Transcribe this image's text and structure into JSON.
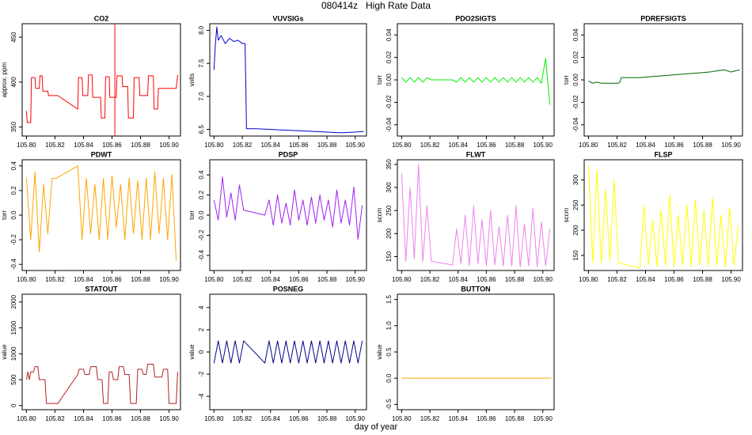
{
  "title": "080414z   High Rate Data",
  "x_label": "day of year",
  "chart_data": [
    {
      "type": "line",
      "title": "CO2",
      "y_label": "approx. ppm",
      "color": "#ff0000",
      "x": [
        105.8,
        105.8005,
        105.803,
        105.8035,
        105.806,
        105.8065,
        105.809,
        105.8095,
        105.811,
        105.8115,
        105.815,
        105.8155,
        105.822,
        105.836,
        105.8365,
        105.839,
        105.8395,
        105.843,
        105.8435,
        105.846,
        105.8465,
        105.852,
        105.8525,
        105.855,
        105.8555,
        105.858,
        105.8585,
        105.863,
        105.8635,
        105.867,
        105.8675,
        105.871,
        105.8715,
        105.875,
        105.8755,
        105.879,
        105.8795,
        105.885,
        105.8855,
        105.889,
        105.8895,
        105.892,
        105.8925,
        105.905,
        105.906
      ],
      "values": [
        368,
        355,
        355,
        405,
        405,
        393,
        393,
        407,
        407,
        390,
        390,
        385,
        385,
        370,
        405,
        405,
        385,
        385,
        408,
        408,
        383,
        383,
        360,
        360,
        406,
        406,
        383,
        383,
        407,
        407,
        395,
        395,
        360,
        360,
        405,
        405,
        385,
        385,
        407,
        407,
        370,
        370,
        393,
        393,
        408
      ],
      "vline": 105.862,
      "xlim": [
        105.797,
        105.908
      ],
      "xticks": [
        {
          "value": 105.8,
          "label": "105.80"
        },
        {
          "value": 105.82,
          "label": "105.82"
        },
        {
          "value": 105.84,
          "label": "105.84"
        },
        {
          "value": 105.86,
          "label": "105.86"
        },
        {
          "value": 105.88,
          "label": "105.88"
        },
        {
          "value": 105.9,
          "label": "105.90"
        }
      ],
      "ylim": [
        340,
        465
      ],
      "yticks": [
        350,
        400,
        450
      ]
    },
    {
      "type": "line",
      "title": "VUVSIGs",
      "y_label": "volts",
      "color": "#0000cd",
      "x": [
        105.8,
        105.801,
        105.802,
        105.803,
        105.805,
        105.808,
        105.811,
        105.814,
        105.817,
        105.82,
        105.822,
        105.8225,
        105.823,
        105.83,
        105.85,
        105.87,
        105.89,
        105.9,
        105.906
      ],
      "values": [
        7.4,
        7.8,
        8.05,
        7.85,
        7.92,
        7.8,
        7.88,
        7.83,
        7.85,
        7.8,
        7.8,
        7.2,
        6.51,
        6.51,
        6.49,
        6.47,
        6.45,
        6.46,
        6.47
      ],
      "xlim": [
        105.797,
        105.908
      ],
      "xticks": [
        {
          "value": 105.8,
          "label": "105.80"
        },
        {
          "value": 105.82,
          "label": "105.82"
        },
        {
          "value": 105.84,
          "label": "105.84"
        },
        {
          "value": 105.86,
          "label": "105.86"
        },
        {
          "value": 105.88,
          "label": "105.88"
        },
        {
          "value": 105.9,
          "label": "105.90"
        }
      ],
      "ylim": [
        6.4,
        8.1
      ],
      "yticks": [
        6.5,
        {
          "value": 7.0,
          "label": "7.0"
        },
        7.5,
        {
          "value": 8.0,
          "label": "8.0"
        }
      ]
    },
    {
      "type": "line",
      "title": "PDO2SIGTS",
      "y_label": "torr",
      "color": "#00ee00",
      "x": [
        105.8,
        105.803,
        105.806,
        105.809,
        105.812,
        105.815,
        105.818,
        105.821,
        105.836,
        105.839,
        105.842,
        105.845,
        105.848,
        105.851,
        105.854,
        105.857,
        105.86,
        105.863,
        105.866,
        105.869,
        105.872,
        105.875,
        105.878,
        105.881,
        105.884,
        105.887,
        105.89,
        105.893,
        105.896,
        105.899,
        105.902,
        105.905
      ],
      "values": [
        0.002,
        -0.002,
        0.002,
        -0.002,
        0.002,
        -0.002,
        0.002,
        0,
        0,
        -0.002,
        0.002,
        -0.002,
        0.002,
        -0.002,
        0.002,
        -0.002,
        0.002,
        -0.002,
        0.002,
        -0.002,
        0.002,
        -0.002,
        0.002,
        -0.002,
        0.002,
        -0.002,
        0.002,
        -0.002,
        0.002,
        -0.003,
        0.019,
        -0.022
      ],
      "xlim": [
        105.797,
        105.908
      ],
      "xticks": [
        {
          "value": 105.8,
          "label": "105.80"
        },
        {
          "value": 105.82,
          "label": "105.82"
        },
        {
          "value": 105.84,
          "label": "105.84"
        },
        {
          "value": 105.86,
          "label": "105.86"
        },
        {
          "value": 105.88,
          "label": "105.88"
        },
        {
          "value": 105.9,
          "label": "105.90"
        }
      ],
      "ylim": [
        -0.05,
        0.05
      ],
      "yticks": [
        -0.04,
        -0.02,
        {
          "value": 0,
          "label": "0.00"
        },
        0.02,
        0.04
      ]
    },
    {
      "type": "line",
      "title": "PDREFSIGTS",
      "y_label": "torr",
      "color": "#006400",
      "x": [
        105.8,
        105.803,
        105.806,
        105.809,
        105.812,
        105.815,
        105.818,
        105.821,
        105.822,
        105.823,
        105.836,
        105.845,
        105.855,
        105.865,
        105.875,
        105.885,
        105.89,
        105.895,
        105.9,
        105.906
      ],
      "values": [
        -0.001,
        -0.003,
        -0.002,
        -0.003,
        -0.003,
        -0.003,
        -0.003,
        -0.003,
        -0.002,
        0.002,
        0.002,
        0.003,
        0.004,
        0.005,
        0.006,
        0.007,
        0.008,
        0.009,
        0.007,
        0.009
      ],
      "xlim": [
        105.797,
        105.908
      ],
      "xticks": [
        {
          "value": 105.8,
          "label": "105.80"
        },
        {
          "value": 105.82,
          "label": "105.82"
        },
        {
          "value": 105.84,
          "label": "105.84"
        },
        {
          "value": 105.86,
          "label": "105.86"
        },
        {
          "value": 105.88,
          "label": "105.88"
        },
        {
          "value": 105.9,
          "label": "105.90"
        }
      ],
      "ylim": [
        -0.05,
        0.05
      ],
      "yticks": [
        -0.04,
        -0.02,
        {
          "value": 0,
          "label": "0.00"
        },
        0.02,
        0.04
      ]
    },
    {
      "type": "line",
      "title": "PDWT",
      "y_label": "torr",
      "color": "#ffa500",
      "x": [
        105.8,
        105.803,
        105.806,
        105.809,
        105.812,
        105.815,
        105.818,
        105.821,
        105.836,
        105.839,
        105.842,
        105.845,
        105.848,
        105.851,
        105.854,
        105.857,
        105.86,
        105.863,
        105.866,
        105.869,
        105.872,
        105.875,
        105.878,
        105.881,
        105.884,
        105.887,
        105.89,
        105.893,
        105.896,
        105.899,
        105.902,
        105.905
      ],
      "values": [
        0.3,
        -0.2,
        0.35,
        -0.3,
        0.25,
        -0.15,
        0.3,
        0.3,
        0.4,
        -0.2,
        0.3,
        -0.15,
        0.25,
        -0.2,
        0.3,
        -0.2,
        0.32,
        -0.1,
        0.25,
        -0.2,
        0.3,
        -0.15,
        0.28,
        -0.2,
        0.3,
        -0.2,
        0.35,
        -0.15,
        0.3,
        -0.2,
        0.33,
        -0.37
      ],
      "xlim": [
        105.797,
        105.908
      ],
      "xticks": [
        {
          "value": 105.8,
          "label": "105.80"
        },
        {
          "value": 105.82,
          "label": "105.82"
        },
        {
          "value": 105.84,
          "label": "105.84"
        },
        {
          "value": 105.86,
          "label": "105.86"
        },
        {
          "value": 105.88,
          "label": "105.88"
        },
        {
          "value": 105.9,
          "label": "105.90"
        }
      ],
      "ylim": [
        -0.45,
        0.45
      ],
      "yticks": [
        -0.4,
        -0.2,
        {
          "value": 0,
          "label": "0.0"
        },
        0.2,
        0.4
      ]
    },
    {
      "type": "line",
      "title": "PDSP",
      "y_label": "torr",
      "color": "#a020f0",
      "x": [
        105.8,
        105.803,
        105.806,
        105.809,
        105.812,
        105.815,
        105.818,
        105.821,
        105.836,
        105.839,
        105.842,
        105.845,
        105.848,
        105.851,
        105.854,
        105.857,
        105.86,
        105.863,
        105.866,
        105.869,
        105.872,
        105.875,
        105.878,
        105.881,
        105.884,
        105.887,
        105.89,
        105.893,
        105.896,
        105.899,
        105.902,
        105.905
      ],
      "values": [
        0.15,
        -0.05,
        0.38,
        -0.02,
        0.22,
        -0.05,
        0.3,
        0.05,
        0,
        0.15,
        -0.1,
        0.2,
        -0.08,
        0.12,
        -0.1,
        0.25,
        -0.05,
        0.15,
        -0.1,
        0.18,
        -0.08,
        0.2,
        -0.05,
        0.15,
        -0.12,
        0.25,
        -0.08,
        0.15,
        -0.1,
        0.28,
        -0.24,
        0.1
      ],
      "xlim": [
        105.797,
        105.908
      ],
      "xticks": [
        {
          "value": 105.8,
          "label": "105.80"
        },
        {
          "value": 105.82,
          "label": "105.82"
        },
        {
          "value": 105.84,
          "label": "105.84"
        },
        {
          "value": 105.86,
          "label": "105.86"
        },
        {
          "value": 105.88,
          "label": "105.88"
        },
        {
          "value": 105.9,
          "label": "105.90"
        }
      ],
      "ylim": [
        -0.55,
        0.55
      ],
      "yticks": [
        -0.4,
        -0.2,
        {
          "value": 0,
          "label": "0.0"
        },
        0.2,
        0.4
      ]
    },
    {
      "type": "line",
      "title": "FLWT",
      "y_label": "sccm",
      "color": "#ee82ee",
      "x": [
        105.8,
        105.803,
        105.806,
        105.809,
        105.812,
        105.815,
        105.818,
        105.821,
        105.836,
        105.839,
        105.842,
        105.845,
        105.848,
        105.851,
        105.854,
        105.857,
        105.86,
        105.863,
        105.866,
        105.869,
        105.872,
        105.875,
        105.878,
        105.881,
        105.884,
        105.887,
        105.89,
        105.893,
        105.896,
        105.899,
        105.902,
        105.905
      ],
      "values": [
        330,
        140,
        300,
        145,
        350,
        140,
        260,
        140,
        132,
        210,
        135,
        240,
        130,
        260,
        135,
        230,
        130,
        250,
        132,
        215,
        130,
        240,
        130,
        260,
        128,
        220,
        130,
        255,
        128,
        225,
        130,
        210
      ],
      "xlim": [
        105.797,
        105.908
      ],
      "xticks": [
        {
          "value": 105.8,
          "label": "105.80"
        },
        {
          "value": 105.82,
          "label": "105.82"
        },
        {
          "value": 105.84,
          "label": "105.84"
        },
        {
          "value": 105.86,
          "label": "105.86"
        },
        {
          "value": 105.88,
          "label": "105.88"
        },
        {
          "value": 105.9,
          "label": "105.90"
        }
      ],
      "ylim": [
        120,
        360
      ],
      "yticks": [
        150,
        200,
        250,
        300,
        350
      ]
    },
    {
      "type": "line",
      "title": "FLSP",
      "y_label": "sccm",
      "color": "#ffff00",
      "x": [
        105.8,
        105.803,
        105.806,
        105.809,
        105.812,
        105.815,
        105.818,
        105.821,
        105.836,
        105.839,
        105.842,
        105.845,
        105.848,
        105.851,
        105.854,
        105.857,
        105.86,
        105.863,
        105.866,
        105.869,
        105.872,
        105.875,
        105.878,
        105.881,
        105.884,
        105.887,
        105.89,
        105.893,
        105.896,
        105.899,
        105.902,
        105.905
      ],
      "values": [
        330,
        135,
        320,
        135,
        280,
        140,
        300,
        135,
        125,
        250,
        130,
        220,
        128,
        240,
        130,
        270,
        128,
        230,
        130,
        250,
        128,
        260,
        130,
        240,
        128,
        265,
        130,
        230,
        128,
        245,
        130,
        210
      ],
      "xlim": [
        105.797,
        105.908
      ],
      "xticks": [
        {
          "value": 105.8,
          "label": "105.80"
        },
        {
          "value": 105.82,
          "label": "105.82"
        },
        {
          "value": 105.84,
          "label": "105.84"
        },
        {
          "value": 105.86,
          "label": "105.86"
        },
        {
          "value": 105.88,
          "label": "105.88"
        },
        {
          "value": 105.9,
          "label": "105.90"
        }
      ],
      "ylim": [
        120,
        340
      ],
      "yticks": [
        150,
        200,
        250,
        300
      ]
    },
    {
      "type": "line",
      "title": "STATOUT",
      "y_label": "value",
      "color": "#b22222",
      "x": [
        105.8,
        105.801,
        105.802,
        105.803,
        105.805,
        105.806,
        105.808,
        105.809,
        105.813,
        105.814,
        105.822,
        105.836,
        105.837,
        105.84,
        105.841,
        105.844,
        105.845,
        105.849,
        105.85,
        105.853,
        105.854,
        105.857,
        105.858,
        105.86,
        105.861,
        105.864,
        105.865,
        105.868,
        105.869,
        105.872,
        105.873,
        105.877,
        105.878,
        105.881,
        105.882,
        105.884,
        105.885,
        105.889,
        105.89,
        105.895,
        105.896,
        105.899,
        105.9,
        105.905,
        105.906
      ],
      "values": [
        500,
        650,
        500,
        650,
        650,
        750,
        750,
        500,
        500,
        40,
        40,
        600,
        700,
        700,
        600,
        600,
        750,
        750,
        500,
        500,
        40,
        40,
        650,
        650,
        500,
        500,
        750,
        750,
        600,
        600,
        40,
        40,
        700,
        700,
        600,
        600,
        800,
        800,
        550,
        550,
        700,
        700,
        40,
        40,
        650
      ],
      "xlim": [
        105.797,
        105.908
      ],
      "xticks": [
        {
          "value": 105.8,
          "label": "105.80"
        },
        {
          "value": 105.82,
          "label": "105.82"
        },
        {
          "value": 105.84,
          "label": "105.84"
        },
        {
          "value": 105.86,
          "label": "105.86"
        },
        {
          "value": 105.88,
          "label": "105.88"
        },
        {
          "value": 105.9,
          "label": "105.90"
        }
      ],
      "ylim": [
        -80,
        2150
      ],
      "yticks": [
        0,
        500,
        1000,
        1500,
        2000
      ]
    },
    {
      "type": "line",
      "title": "POSNEG",
      "y_label": "value",
      "color": "#00008b",
      "x": [
        105.8,
        105.803,
        105.806,
        105.809,
        105.812,
        105.815,
        105.818,
        105.821,
        105.836,
        105.839,
        105.842,
        105.845,
        105.848,
        105.851,
        105.854,
        105.857,
        105.86,
        105.863,
        105.866,
        105.869,
        105.872,
        105.875,
        105.878,
        105.881,
        105.884,
        105.887,
        105.89,
        105.893,
        105.896,
        105.899,
        105.902,
        105.905
      ],
      "values": [
        -1,
        1,
        -1,
        1,
        -1,
        1,
        -1,
        1,
        -1,
        1,
        -1,
        1,
        -1,
        1,
        -1,
        1,
        -1,
        1,
        -1,
        1,
        -1,
        1,
        -1,
        1,
        -1,
        1,
        -1,
        1,
        -1,
        1,
        -1,
        1
      ],
      "xlim": [
        105.797,
        105.908
      ],
      "xticks": [
        {
          "value": 105.8,
          "label": "105.80"
        },
        {
          "value": 105.82,
          "label": "105.82"
        },
        {
          "value": 105.84,
          "label": "105.84"
        },
        {
          "value": 105.86,
          "label": "105.86"
        },
        {
          "value": 105.88,
          "label": "105.88"
        },
        {
          "value": 105.9,
          "label": "105.90"
        }
      ],
      "ylim": [
        -5.2,
        5.2
      ],
      "yticks": [
        -4,
        -2,
        0,
        2,
        4
      ]
    },
    {
      "type": "line",
      "title": "BUTTON",
      "y_label": "value",
      "color": "#ffa500",
      "x": [
        105.8,
        105.906
      ],
      "values": [
        0,
        0
      ],
      "xlim": [
        105.797,
        105.908
      ],
      "xticks": [
        {
          "value": 105.8,
          "label": "105.80"
        },
        {
          "value": 105.82,
          "label": "105.82"
        },
        {
          "value": 105.84,
          "label": "105.84"
        },
        {
          "value": 105.86,
          "label": "105.86"
        },
        {
          "value": 105.88,
          "label": "105.88"
        },
        {
          "value": 105.9,
          "label": "105.90"
        }
      ],
      "ylim": [
        -0.6,
        1.6
      ],
      "yticks": [
        -0.5,
        {
          "value": 0,
          "label": "0.0"
        },
        0.5,
        {
          "value": 1,
          "label": "1.0"
        },
        1.5
      ]
    }
  ]
}
